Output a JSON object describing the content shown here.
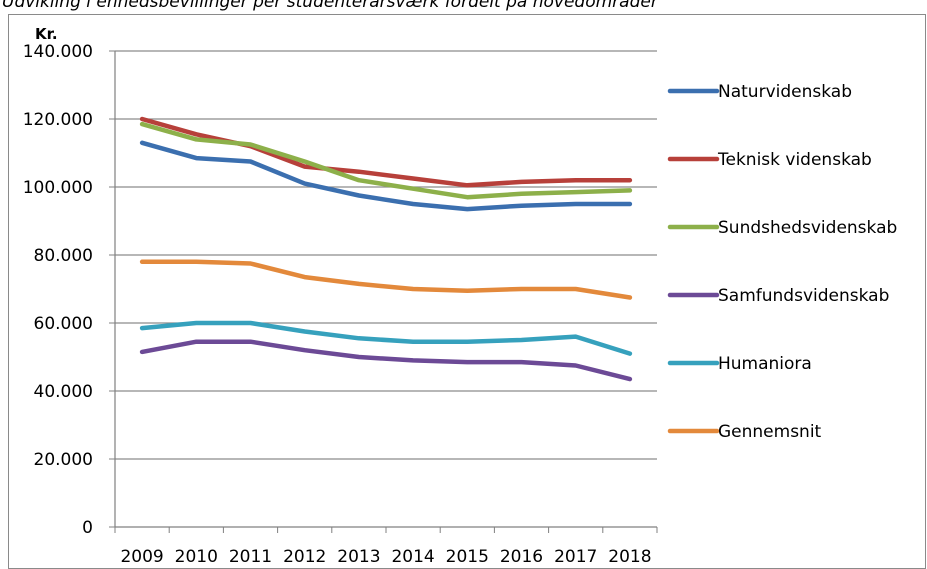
{
  "chart_data": {
    "type": "line",
    "title": "Udvikling i enhedsbevillinger per studenterårsværk fordelt på hovedområder",
    "ylabel": "Kr.",
    "xlabel": "",
    "categories": [
      "2009",
      "2010",
      "2011",
      "2012",
      "2013",
      "2014",
      "2015",
      "2016",
      "2017",
      "2018"
    ],
    "ylim": [
      0,
      140000
    ],
    "yticks": [
      0,
      20000,
      40000,
      60000,
      80000,
      100000,
      120000,
      140000
    ],
    "ytick_labels": [
      "0",
      "20.000",
      "40.000",
      "60.000",
      "80.000",
      "100.000",
      "120.000",
      "140.000"
    ],
    "grid": true,
    "legend": "right",
    "series": [
      {
        "name": "Naturvidenskab",
        "color": "#3b6faf",
        "values": [
          113000,
          108500,
          107500,
          101000,
          97500,
          95000,
          93500,
          94500,
          95000,
          95000
        ]
      },
      {
        "name": "Teknisk videnskab",
        "color": "#b7403a",
        "values": [
          120000,
          115500,
          112000,
          106000,
          104500,
          102500,
          100500,
          101500,
          102000,
          102000
        ]
      },
      {
        "name": "Sundshedsvidenskab",
        "color": "#8db04a",
        "values": [
          118500,
          114000,
          112500,
          107500,
          102000,
          99500,
          97000,
          98000,
          98500,
          99000
        ]
      },
      {
        "name": "Samfundsvidenskab",
        "color": "#6c4a96",
        "values": [
          51500,
          54500,
          54500,
          52000,
          50000,
          49000,
          48500,
          48500,
          47500,
          43500
        ]
      },
      {
        "name": "Humaniora",
        "color": "#36a1bd",
        "values": [
          58500,
          60000,
          60000,
          57500,
          55500,
          54500,
          54500,
          55000,
          56000,
          51000
        ]
      },
      {
        "name": "Gennemsnit",
        "color": "#e3893b",
        "values": [
          78000,
          78000,
          77500,
          73500,
          71500,
          70000,
          69500,
          70000,
          70000,
          67500
        ]
      }
    ]
  }
}
